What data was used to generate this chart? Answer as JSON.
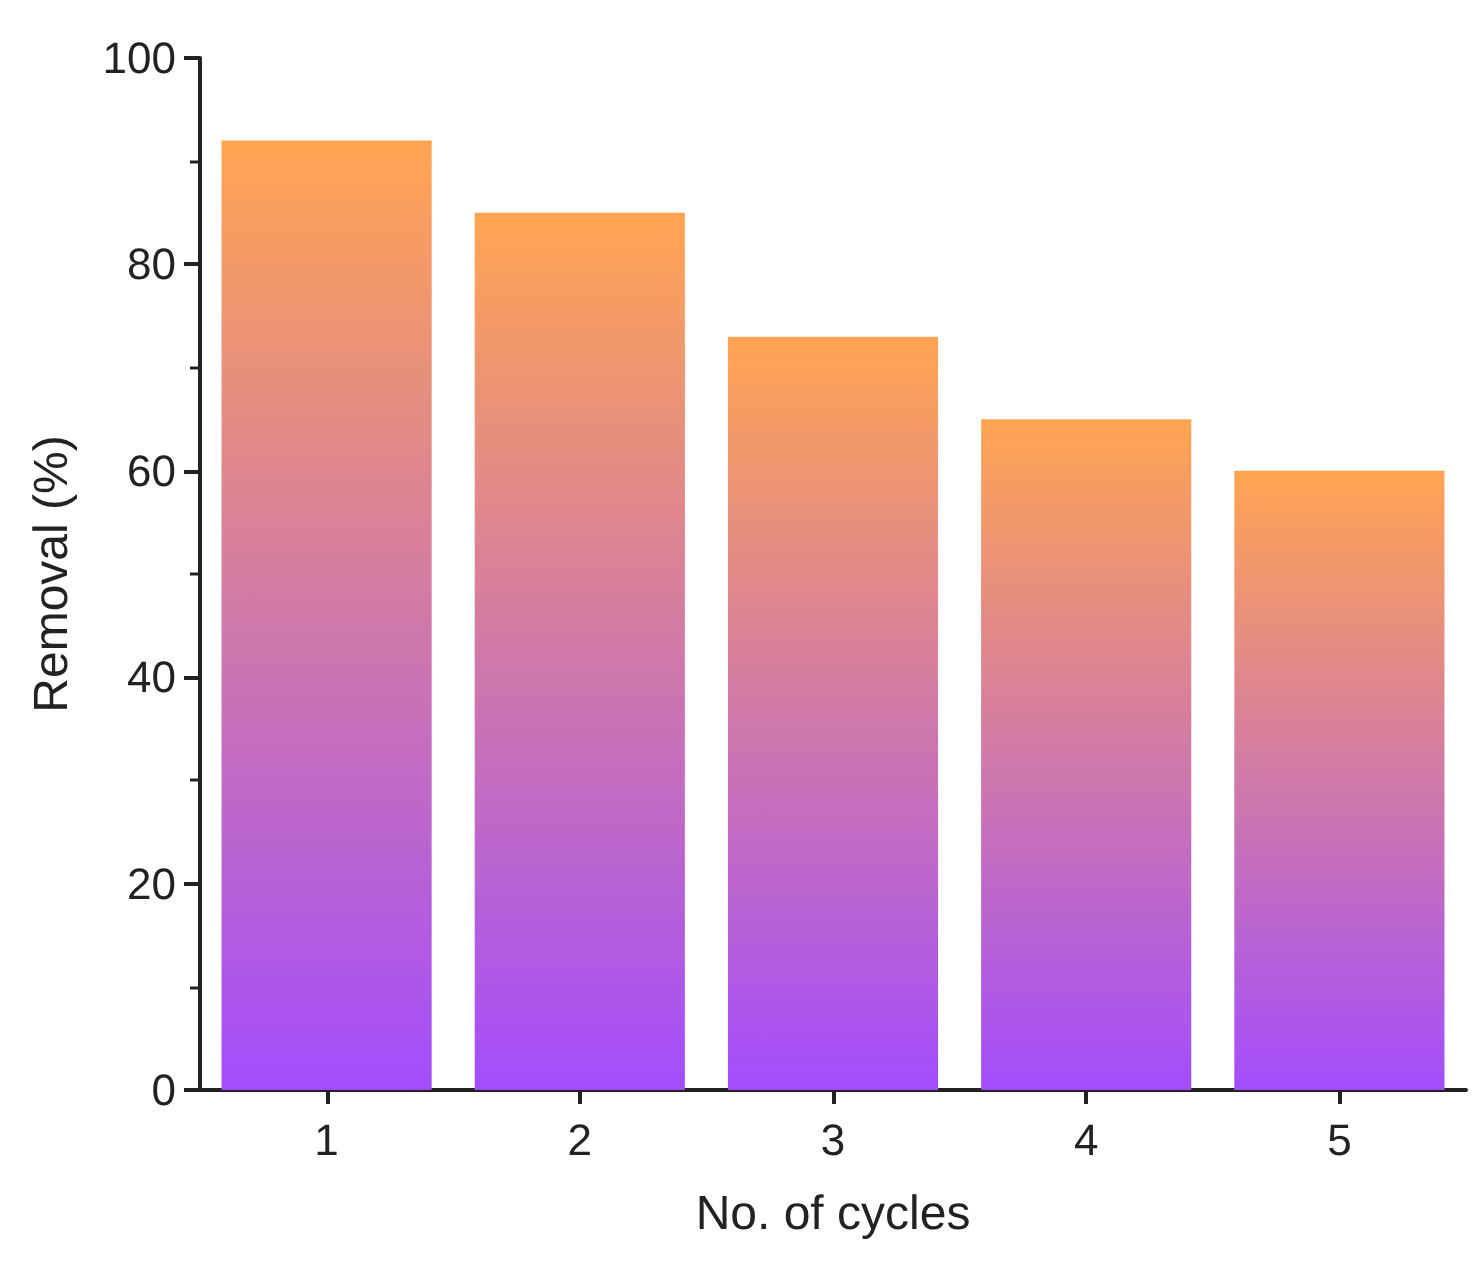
{
  "chart_data": {
    "type": "bar",
    "xlabel": "No. of cycles",
    "ylabel": "Removal (%)",
    "categories": [
      "1",
      "2",
      "3",
      "4",
      "5"
    ],
    "values": [
      92,
      85,
      73,
      65,
      60
    ],
    "color": "#ffa552",
    "ylim": [
      0,
      100
    ],
    "yticks": [
      0,
      20,
      40,
      60,
      80,
      100
    ],
    "grid": false
  }
}
